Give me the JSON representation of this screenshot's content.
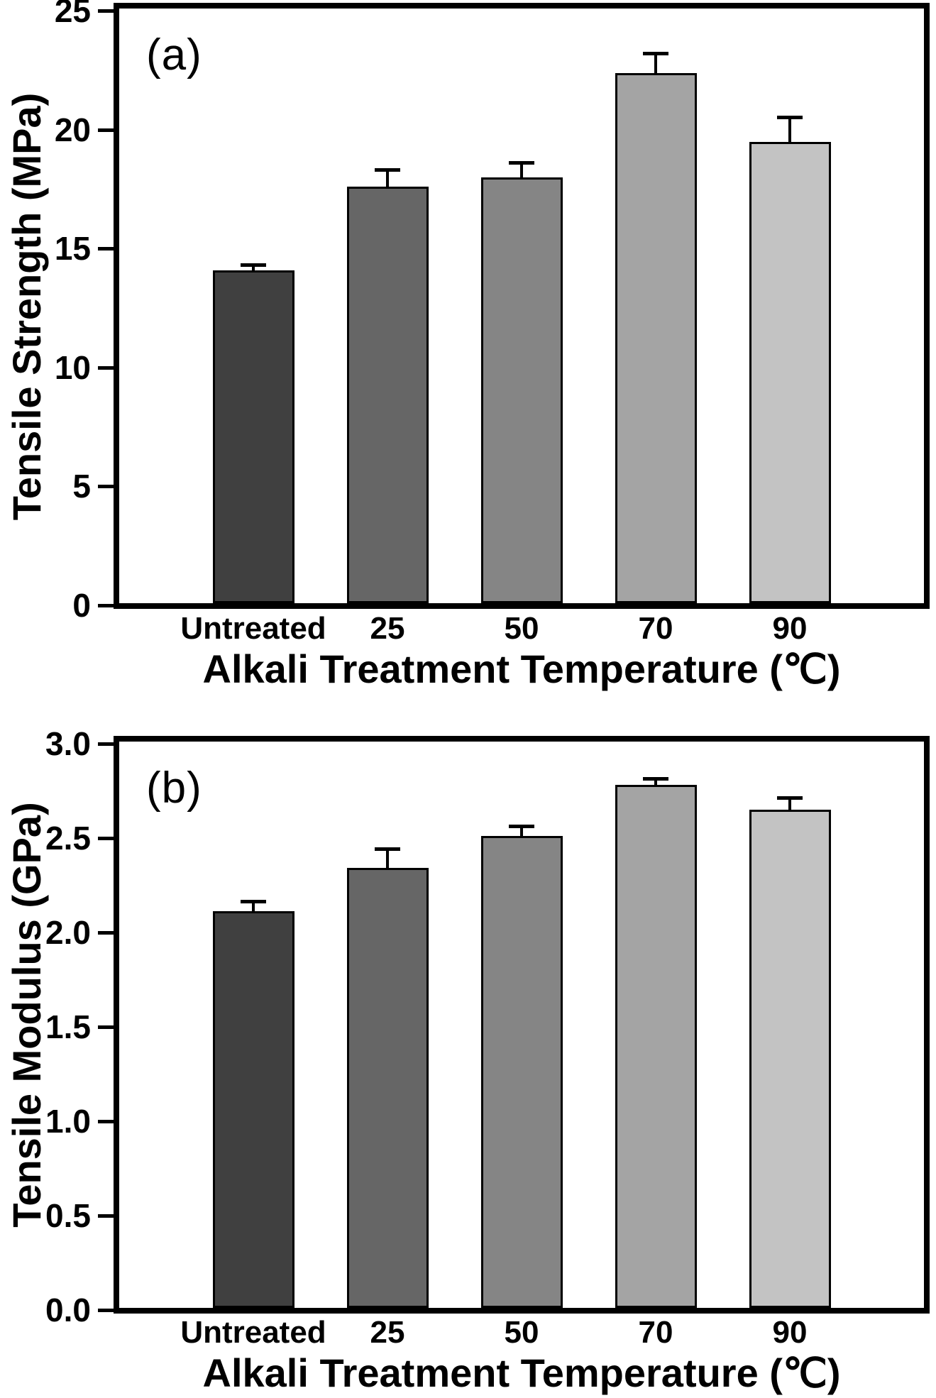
{
  "figure": {
    "background": "#ffffff",
    "axis_color": "#000000",
    "bar_border_color": "#000000"
  },
  "chart_data": [
    {
      "type": "bar",
      "panel_label": "(a)",
      "title": "",
      "xlabel": "Alkali Treatment Temperature (℃)",
      "ylabel": "Tensile Strength (MPa)",
      "categories": [
        "Untreated",
        "25",
        "50",
        "70",
        "90"
      ],
      "values": [
        14.0,
        17.5,
        17.9,
        22.3,
        19.4
      ],
      "errors": [
        0.2,
        0.7,
        0.6,
        0.8,
        1.0
      ],
      "ylim": [
        0,
        25
      ],
      "ytick_step": 5,
      "ytick_decimals": 0,
      "grid": false,
      "legend": "none",
      "bar_colors": [
        "#404040",
        "#666666",
        "#858585",
        "#a4a4a4",
        "#c3c3c3"
      ]
    },
    {
      "type": "bar",
      "panel_label": "(b)",
      "title": "",
      "xlabel": "Alkali Treatment Temperature (℃)",
      "ylabel": "Tensile Modulus (GPa)",
      "categories": [
        "Untreated",
        "25",
        "50",
        "70",
        "90"
      ],
      "values": [
        2.1,
        2.33,
        2.5,
        2.77,
        2.64
      ],
      "errors": [
        0.05,
        0.1,
        0.05,
        0.03,
        0.06
      ],
      "ylim": [
        0,
        3.0
      ],
      "ytick_step": 0.5,
      "ytick_decimals": 1,
      "grid": false,
      "legend": "none",
      "bar_colors": [
        "#404040",
        "#666666",
        "#858585",
        "#a4a4a4",
        "#c3c3c3"
      ]
    }
  ]
}
